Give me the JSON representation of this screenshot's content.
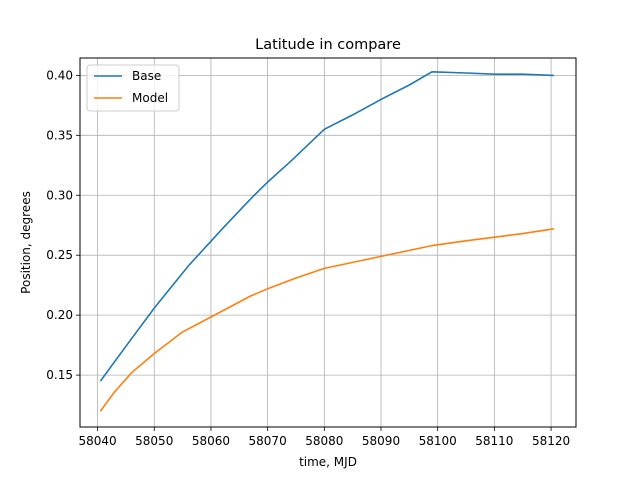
{
  "chart_data": {
    "type": "line",
    "title": "Latitude in compare",
    "xlabel": "time, MJD",
    "ylabel": "Position, degrees",
    "xlim": [
      58036.9,
      58124.4
    ],
    "ylim": [
      0.1067,
      0.4145
    ],
    "xticks": [
      58040,
      58050,
      58060,
      58070,
      58080,
      58090,
      58100,
      58110,
      58120
    ],
    "yticks": [
      0.15,
      0.2,
      0.25,
      0.3,
      0.35,
      0.4
    ],
    "xtick_labels": [
      "58040",
      "58050",
      "58060",
      "58070",
      "58080",
      "58090",
      "58100",
      "58110",
      "58120"
    ],
    "ytick_labels": [
      "0.15",
      "0.20",
      "0.25",
      "0.30",
      "0.35",
      "0.40"
    ],
    "grid": true,
    "legend_position": "top-left",
    "series": [
      {
        "name": "Base",
        "color": "#1f77b4",
        "x": [
          58040.5,
          58045,
          58050,
          58056,
          58062,
          58067,
          58070,
          58074,
          58080,
          58085,
          58090,
          58095,
          58099,
          58105,
          58110,
          58115,
          58120.5
        ],
        "y": [
          0.145,
          0.174,
          0.206,
          0.241,
          0.272,
          0.297,
          0.311,
          0.328,
          0.355,
          0.367,
          0.38,
          0.392,
          0.403,
          0.402,
          0.401,
          0.401,
          0.4
        ]
      },
      {
        "name": "Model",
        "color": "#ff7f0e",
        "x": [
          58040.5,
          58043,
          58046,
          58050,
          58055,
          58061,
          58067,
          58070,
          58075,
          58080,
          58085,
          58090,
          58095,
          58099,
          58105,
          58110,
          58115,
          58120.5
        ],
        "y": [
          0.12,
          0.136,
          0.152,
          0.168,
          0.186,
          0.201,
          0.216,
          0.222,
          0.231,
          0.239,
          0.244,
          0.249,
          0.254,
          0.258,
          0.262,
          0.265,
          0.268,
          0.272
        ]
      }
    ]
  }
}
